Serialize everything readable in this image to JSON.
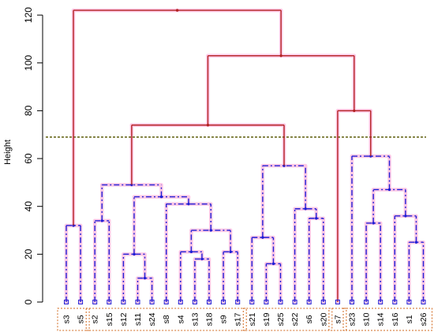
{
  "chart_data": {
    "type": "dendrogram",
    "ylabel": "Height",
    "ylim": [
      0,
      124
    ],
    "yticks": [
      0,
      20,
      40,
      60,
      80,
      100,
      120
    ],
    "cut_height": 69,
    "leaves": [
      "s3",
      "s5",
      "s2",
      "s15",
      "s12",
      "s11",
      "s24",
      "s8",
      "s4",
      "s13",
      "s18",
      "s9",
      "s17",
      "s21",
      "s19",
      "s25",
      "s22",
      "s6",
      "s20",
      "s7",
      "s23",
      "s10",
      "s14",
      "s16",
      "s1",
      "s26"
    ],
    "clusters": [
      [
        "s3",
        "s5"
      ],
      [
        "s2",
        "s15",
        "s12",
        "s11",
        "s24",
        "s8",
        "s4",
        "s13",
        "s18",
        "s9",
        "s17"
      ],
      [
        "s21",
        "s19",
        "s25",
        "s22",
        "s6",
        "s20"
      ],
      [
        "s7"
      ],
      [
        "s23",
        "s10",
        "s14",
        "s16",
        "s1",
        "s26"
      ]
    ],
    "merges": [
      {
        "left": "s3",
        "right": "s5",
        "height": 32
      },
      {
        "left": "s2",
        "right": "s15",
        "height": 34
      },
      {
        "left": "s11",
        "right": "s24",
        "height": 10
      },
      {
        "left": "s12",
        "right": "m3",
        "height": 20
      },
      {
        "left": "s13",
        "right": "s18",
        "height": 18
      },
      {
        "left": "s4",
        "right": "m5",
        "height": 21
      },
      {
        "left": "s9",
        "right": "s17",
        "height": 21
      },
      {
        "left": "m6",
        "right": "m7",
        "height": 30
      },
      {
        "left": "s8",
        "right": "m8",
        "height": 41
      },
      {
        "left": "m4",
        "right": "m9",
        "height": 44
      },
      {
        "left": "m2",
        "right": "m10",
        "height": 49
      },
      {
        "left": "s19",
        "right": "s25",
        "height": 16
      },
      {
        "left": "s21",
        "right": "m12",
        "height": 27
      },
      {
        "left": "s6",
        "right": "s20",
        "height": 35
      },
      {
        "left": "s22",
        "right": "m14",
        "height": 39
      },
      {
        "left": "m13",
        "right": "m15",
        "height": 57
      },
      {
        "left": "m11",
        "right": "m16",
        "height": 74
      },
      {
        "left": "s10",
        "right": "s14",
        "height": 33
      },
      {
        "left": "s1",
        "right": "s26",
        "height": 25
      },
      {
        "left": "s16",
        "right": "m19",
        "height": 36
      },
      {
        "left": "m18",
        "right": "m20",
        "height": 47
      },
      {
        "left": "s23",
        "right": "m21",
        "height": 61
      },
      {
        "left": "s7",
        "right": "m22",
        "height": 80
      },
      {
        "left": "m17",
        "right": "m23",
        "height": 103
      },
      {
        "left": "m1",
        "right": "m24",
        "height": 122
      }
    ],
    "colors": {
      "upper_branch": "#b22222",
      "lower_branch": "#1f1fd6",
      "cut_line": "#6b6b20",
      "highlight": "#ffc8e6",
      "cluster_box": "#d2691e",
      "axis": "#000000"
    }
  }
}
